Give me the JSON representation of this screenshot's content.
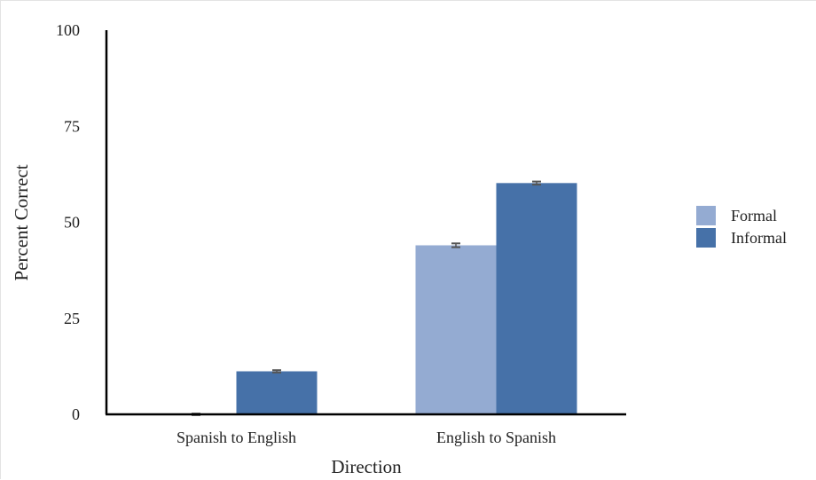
{
  "chart_data": {
    "type": "bar",
    "xlabel": "Direction",
    "ylabel": "Percent Correct",
    "categories": [
      "Spanish to English",
      "English to Spanish"
    ],
    "ylim": [
      0,
      100
    ],
    "yticks": [
      "0",
      "25",
      "50",
      "75",
      "100"
    ],
    "grid": false,
    "legend_position": "right",
    "series": [
      {
        "name": "Formal",
        "values": [
          0,
          44
        ],
        "errors": [
          0.2,
          0.5
        ],
        "color": "#94abd2"
      },
      {
        "name": "Informal",
        "values": [
          11.2,
          60.2
        ],
        "errors": [
          0.3,
          0.4
        ],
        "color": "#4671a8"
      }
    ],
    "colors": {
      "axis": "#000000",
      "error_bar": "#555555"
    }
  }
}
